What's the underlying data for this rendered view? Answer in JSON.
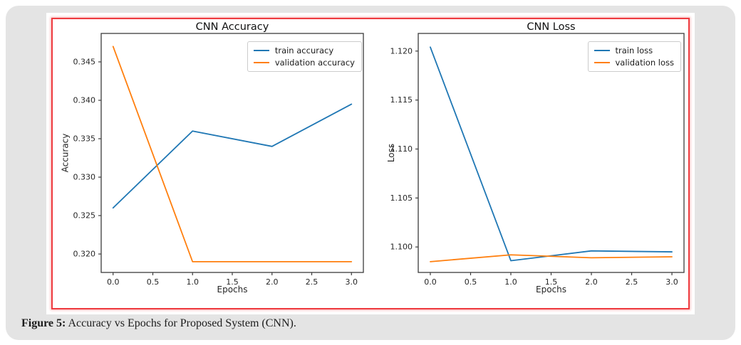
{
  "figure": {
    "caption_label": "Figure 5:",
    "caption_text": " Accuracy vs Epochs for Proposed System (CNN)."
  },
  "colors": {
    "train_line": "#1f77b4",
    "validation_line": "#ff7f0e",
    "frame_red": "#ee3b40",
    "card_gray": "#e4e4e4",
    "spine": "#3c3c3c"
  },
  "chart_data": [
    {
      "type": "line",
      "title": "CNN Accuracy",
      "xlabel": "Epochs",
      "ylabel": "Accuracy",
      "x": [
        0,
        1,
        2,
        3
      ],
      "series": [
        {
          "name": "train accuracy",
          "color": "#1f77b4",
          "values": [
            0.326,
            0.336,
            0.334,
            0.3395
          ]
        },
        {
          "name": "validation accuracy",
          "color": "#ff7f0e",
          "values": [
            0.347,
            0.319,
            0.319,
            0.319
          ]
        }
      ],
      "xlim": [
        -0.15,
        3.15
      ],
      "ylim": [
        0.3176,
        0.3487
      ],
      "xticks": {
        "values": [
          0,
          0.5,
          1,
          1.5,
          2,
          2.5,
          3
        ],
        "labels": [
          "0.0",
          "0.5",
          "1.0",
          "1.5",
          "2.0",
          "2.5",
          "3.0"
        ]
      },
      "yticks": {
        "values": [
          0.32,
          0.325,
          0.33,
          0.335,
          0.34,
          0.345
        ],
        "labels": [
          "0.320",
          "0.325",
          "0.330",
          "0.335",
          "0.340",
          "0.345"
        ]
      },
      "grid": false,
      "legend_position": "upper right"
    },
    {
      "type": "line",
      "title": "CNN Loss",
      "xlabel": "Epochs",
      "ylabel": "Loss",
      "x": [
        0,
        1,
        2,
        3
      ],
      "series": [
        {
          "name": "train loss",
          "color": "#1f77b4",
          "values": [
            1.1204,
            1.0986,
            1.0996,
            1.0995
          ]
        },
        {
          "name": "validation loss",
          "color": "#ff7f0e",
          "values": [
            1.0985,
            1.0992,
            1.0989,
            1.099
          ]
        }
      ],
      "xlim": [
        -0.15,
        3.15
      ],
      "ylim": [
        1.0974,
        1.1218
      ],
      "xticks": {
        "values": [
          0,
          0.5,
          1,
          1.5,
          2,
          2.5,
          3
        ],
        "labels": [
          "0.0",
          "0.5",
          "1.0",
          "1.5",
          "2.0",
          "2.5",
          "3.0"
        ]
      },
      "yticks": {
        "values": [
          1.1,
          1.105,
          1.11,
          1.115,
          1.12
        ],
        "labels": [
          "1.100",
          "1.105",
          "1.110",
          "1.115",
          "1.120"
        ]
      },
      "grid": false,
      "legend_position": "upper right"
    }
  ]
}
